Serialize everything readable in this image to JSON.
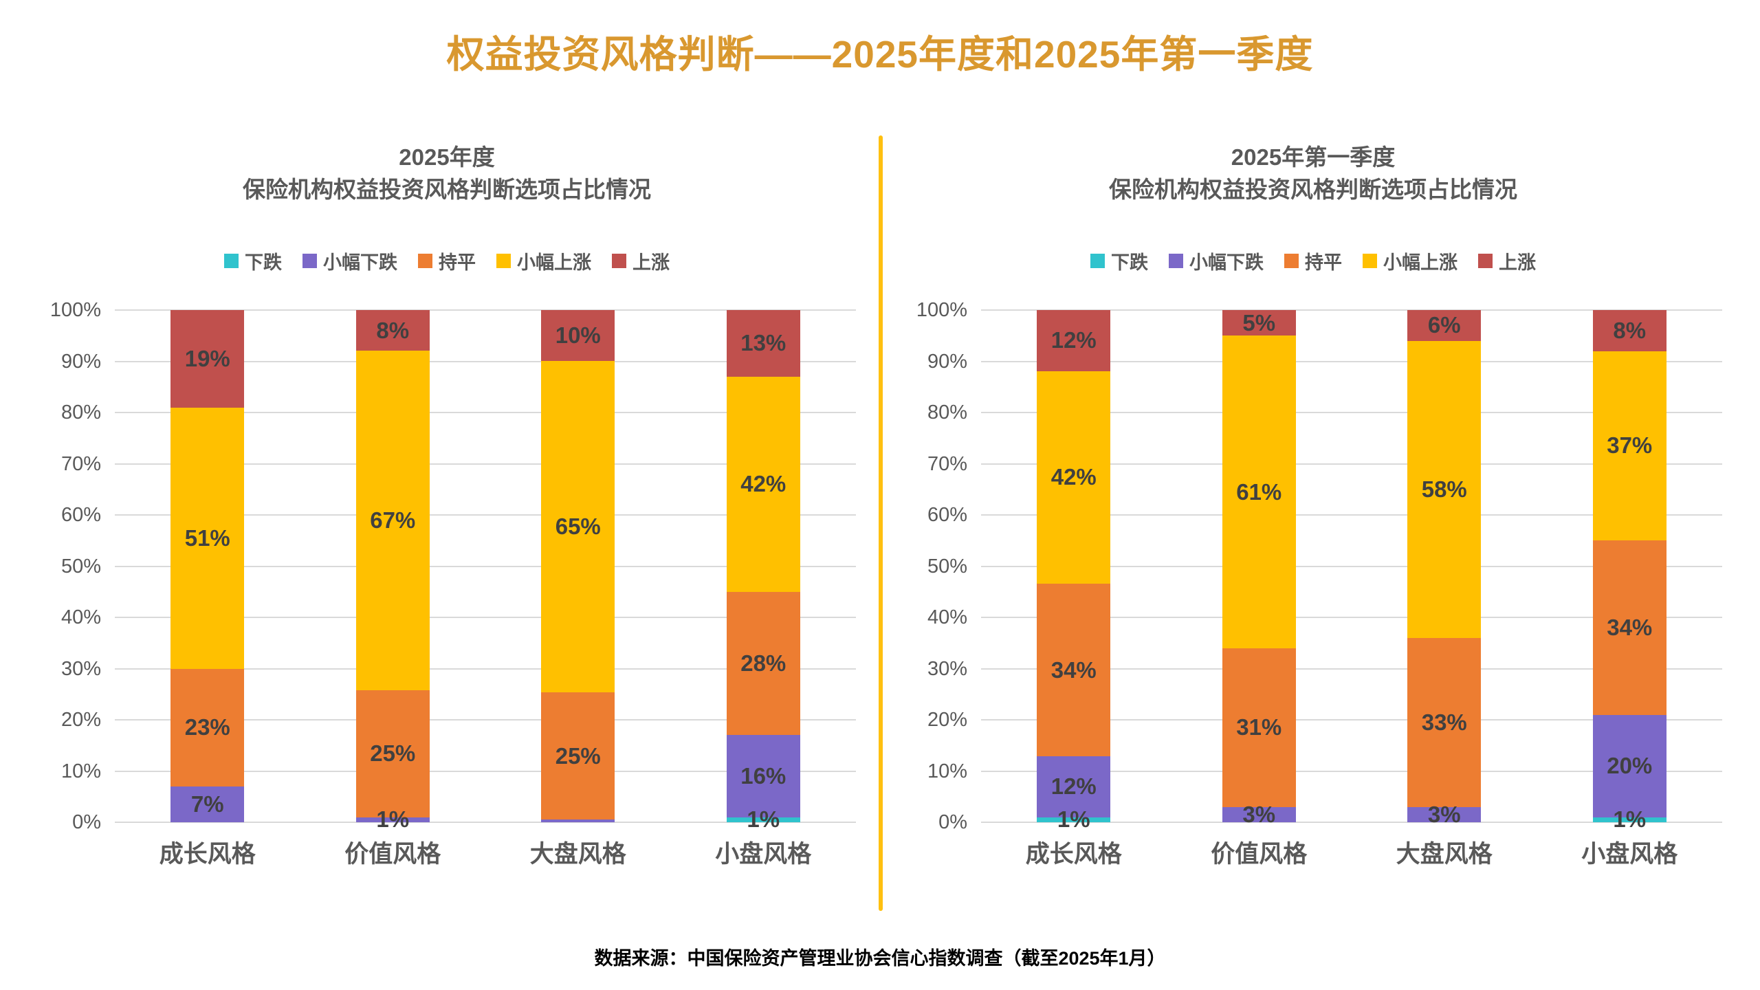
{
  "main": {
    "title": "权益投资风格判断——2025年度和2025年第一季度",
    "source": "数据来源：中国保险资产管理业协会信心指数调查（截至2025年1月）"
  },
  "colors": {
    "title_gold": "#D9982F",
    "divider_gold": "#FFC010",
    "axis_text": "#595959",
    "segment_label_text": "#404040",
    "gridline": "#D9D9D9"
  },
  "legend": {
    "items": [
      {
        "label": "下跌",
        "color": "#30C3CD"
      },
      {
        "label": "小幅下跌",
        "color": "#7B68C8"
      },
      {
        "label": "持平",
        "color": "#ED7D31"
      },
      {
        "label": "小幅上涨",
        "color": "#FFC000"
      },
      {
        "label": "上涨",
        "color": "#C0504D"
      }
    ]
  },
  "axis": {
    "ticks": [
      "100%",
      "90%",
      "80%",
      "70%",
      "60%",
      "50%",
      "40%",
      "30%",
      "20%",
      "10%",
      "0%"
    ]
  },
  "chart_data": [
    {
      "type": "bar",
      "stacked": true,
      "normalized_100pct": true,
      "title_line1": "2025年度",
      "title_line2": "保险机构权益投资风格判断选项占比情况",
      "categories": [
        "成长风格",
        "价值风格",
        "大盘风格",
        "小盘风格"
      ],
      "ylim": [
        0,
        100
      ],
      "grid": true,
      "legend_position": "top",
      "series": [
        {
          "name": "下跌",
          "values": [
            0,
            0,
            0,
            1
          ],
          "labels": [
            "",
            "",
            "",
            "1%"
          ]
        },
        {
          "name": "小幅下跌",
          "values": [
            7,
            1,
            0.5,
            16
          ],
          "labels": [
            "7%",
            "1%",
            "",
            "16%"
          ]
        },
        {
          "name": "持平",
          "values": [
            23,
            25,
            25,
            28
          ],
          "labels": [
            "23%",
            "25%",
            "25%",
            "28%"
          ]
        },
        {
          "name": "小幅上涨",
          "values": [
            51,
            67,
            65,
            42
          ],
          "labels": [
            "51%",
            "67%",
            "65%",
            "42%"
          ]
        },
        {
          "name": "上涨",
          "values": [
            19,
            8,
            10,
            13
          ],
          "labels": [
            "19%",
            "8%",
            "10%",
            "13%"
          ]
        }
      ]
    },
    {
      "type": "bar",
      "stacked": true,
      "normalized_100pct": true,
      "title_line1": "2025年第一季度",
      "title_line2": "保险机构权益投资风格判断选项占比情况",
      "categories": [
        "成长风格",
        "价值风格",
        "大盘风格",
        "小盘风格"
      ],
      "ylim": [
        0,
        100
      ],
      "grid": true,
      "legend_position": "top",
      "series": [
        {
          "name": "下跌",
          "values": [
            1,
            0,
            0,
            1
          ],
          "labels": [
            "1%",
            "",
            "",
            "1%"
          ]
        },
        {
          "name": "小幅下跌",
          "values": [
            12,
            3,
            3,
            20
          ],
          "labels": [
            "12%",
            "3%",
            "3%",
            "20%"
          ]
        },
        {
          "name": "持平",
          "values": [
            34,
            31,
            33,
            34
          ],
          "labels": [
            "34%",
            "31%",
            "33%",
            "34%"
          ]
        },
        {
          "name": "小幅上涨",
          "values": [
            42,
            61,
            58,
            37
          ],
          "labels": [
            "42%",
            "61%",
            "58%",
            "37%"
          ]
        },
        {
          "name": "上涨",
          "values": [
            12,
            5,
            6,
            8
          ],
          "labels": [
            "12%",
            "5%",
            "6%",
            "8%"
          ]
        }
      ]
    }
  ]
}
